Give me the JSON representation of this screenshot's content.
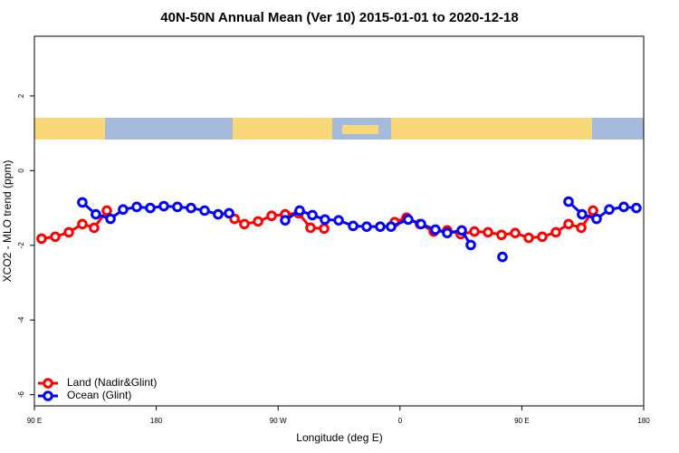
{
  "chart_data": {
    "type": "line",
    "title": "40N-50N Annual Mean (Ver 10)   2015-01-01 to 2020-12-18",
    "x_label": "Longitude (deg E)",
    "y_label": "XCO2 - MLO trend (ppm)",
    "xlim": [
      90,
      540
    ],
    "ylim": [
      -6.3,
      3.6
    ],
    "xticks": [
      {
        "value": 90,
        "label": "90 E"
      },
      {
        "value": 180,
        "label": "180"
      },
      {
        "value": 270,
        "label": "90 W"
      },
      {
        "value": 360,
        "label": "0"
      },
      {
        "value": 450,
        "label": "90 E"
      },
      {
        "value": 540,
        "label": "180"
      }
    ],
    "yticks": [
      -6,
      -4,
      -2,
      0,
      2
    ],
    "legend": "bottom-left",
    "series": [
      {
        "name": "Land (Nadir&Glint)",
        "color": "#ff0000",
        "x": [
          95.3,
          105.4,
          115.4,
          125.4,
          134.1,
          143.5,
          null,
          237.8,
          245.1,
          255.2,
          265.2,
          275.2,
          285.2,
          293.9,
          304.0,
          null,
          356.1,
          364.8,
          374.8,
          384.9,
          394.9,
          404.9,
          415.0,
          425.0,
          435.0,
          445.1,
          455.1,
          465.1,
          475.1,
          484.5,
          493.9,
          502.6
        ],
        "values": [
          -1.82,
          -1.77,
          -1.65,
          -1.43,
          -1.53,
          -1.07,
          null,
          -1.29,
          -1.43,
          -1.36,
          -1.21,
          -1.17,
          -1.14,
          -1.53,
          -1.55,
          null,
          -1.38,
          -1.26,
          -1.43,
          -1.63,
          -1.6,
          -1.7,
          -1.63,
          -1.65,
          -1.72,
          -1.67,
          -1.8,
          -1.77,
          -1.65,
          -1.43,
          -1.53,
          -1.07
        ]
      },
      {
        "name": "Ocean (Glint)",
        "color": "#0000ff",
        "x": [
          125.4,
          135.4,
          146.2,
          155.5,
          165.6,
          175.6,
          185.6,
          195.6,
          205.7,
          215.7,
          225.7,
          233.8,
          null,
          275.2,
          285.9,
          295.3,
          304.6,
          314.7,
          325.4,
          335.4,
          345.4,
          353.4,
          366.1,
          375.5,
          386.2,
          394.9,
          405.6,
          412.3,
          null,
          435.7,
          null,
          484.5,
          494.5,
          505.2,
          514.6,
          525.3,
          534.6
        ],
        "values": [
          -0.85,
          -1.17,
          -1.29,
          -1.04,
          -0.97,
          -1.0,
          -0.95,
          -0.97,
          -1.0,
          -1.07,
          -1.17,
          -1.14,
          null,
          -1.33,
          -1.07,
          -1.19,
          -1.31,
          -1.33,
          -1.48,
          -1.5,
          -1.5,
          -1.5,
          -1.31,
          -1.43,
          -1.58,
          -1.67,
          -1.6,
          -1.99,
          null,
          -2.31,
          null,
          -0.83,
          -1.17,
          -1.29,
          -1.04,
          -0.97,
          -1.0
        ]
      }
    ]
  }
}
